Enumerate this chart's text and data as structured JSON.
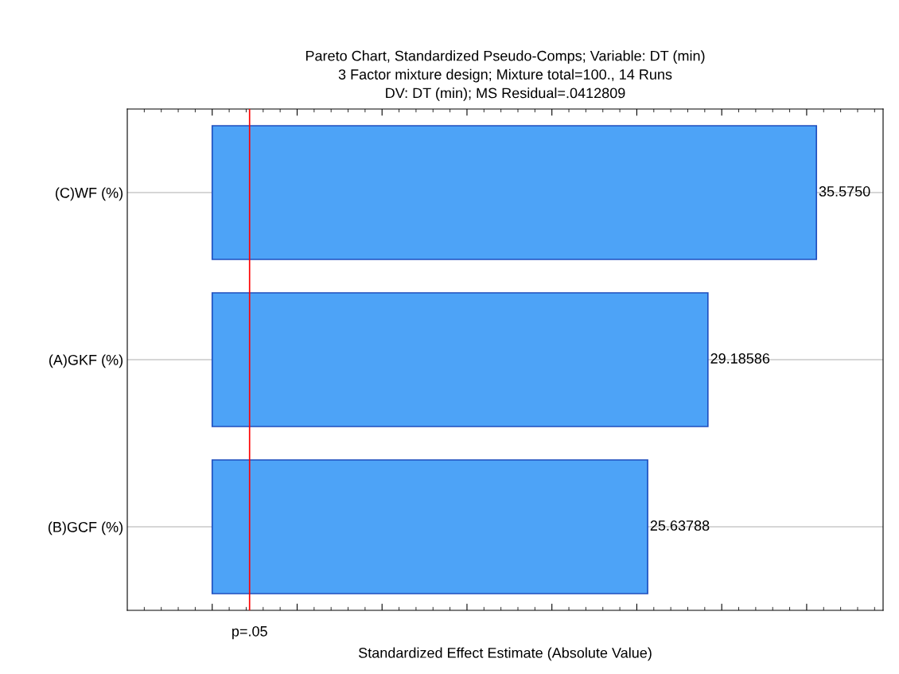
{
  "chart_data": {
    "type": "bar",
    "orientation": "horizontal",
    "title": "Pareto Chart, Standardized Pseudo-Comps; Variable: DT (min)\n3 Factor mixture design; Mixture total=100., 14 Runs\nDV: DT (min); MS Residual=.0412809",
    "xlabel": "Standardized Effect Estimate (Absolute Value)",
    "categories": [
      "(C)WF (%)",
      "(A)GKF (%)",
      "(B)GCF (%)"
    ],
    "values": [
      35.575,
      29.18586,
      25.63788
    ],
    "value_labels": [
      "35.5750",
      "29.18586",
      "25.63788"
    ],
    "color": "#4da3f7",
    "xlim": [
      -5,
      39.5
    ],
    "xticks": [
      {
        "value": 0,
        "label": null
      },
      {
        "value": 5,
        "label": null
      },
      {
        "value": 10,
        "label": null
      },
      {
        "value": 15,
        "label": null
      },
      {
        "value": 20,
        "label": null
      },
      {
        "value": 25,
        "label": null
      },
      {
        "value": 30,
        "label": null
      },
      {
        "value": 35,
        "label": null
      }
    ],
    "ref_lines": [
      {
        "axis": "x",
        "value": 2.2,
        "label": "p=.05",
        "color": "#ff0000"
      }
    ],
    "grid": "y",
    "legend": false
  }
}
